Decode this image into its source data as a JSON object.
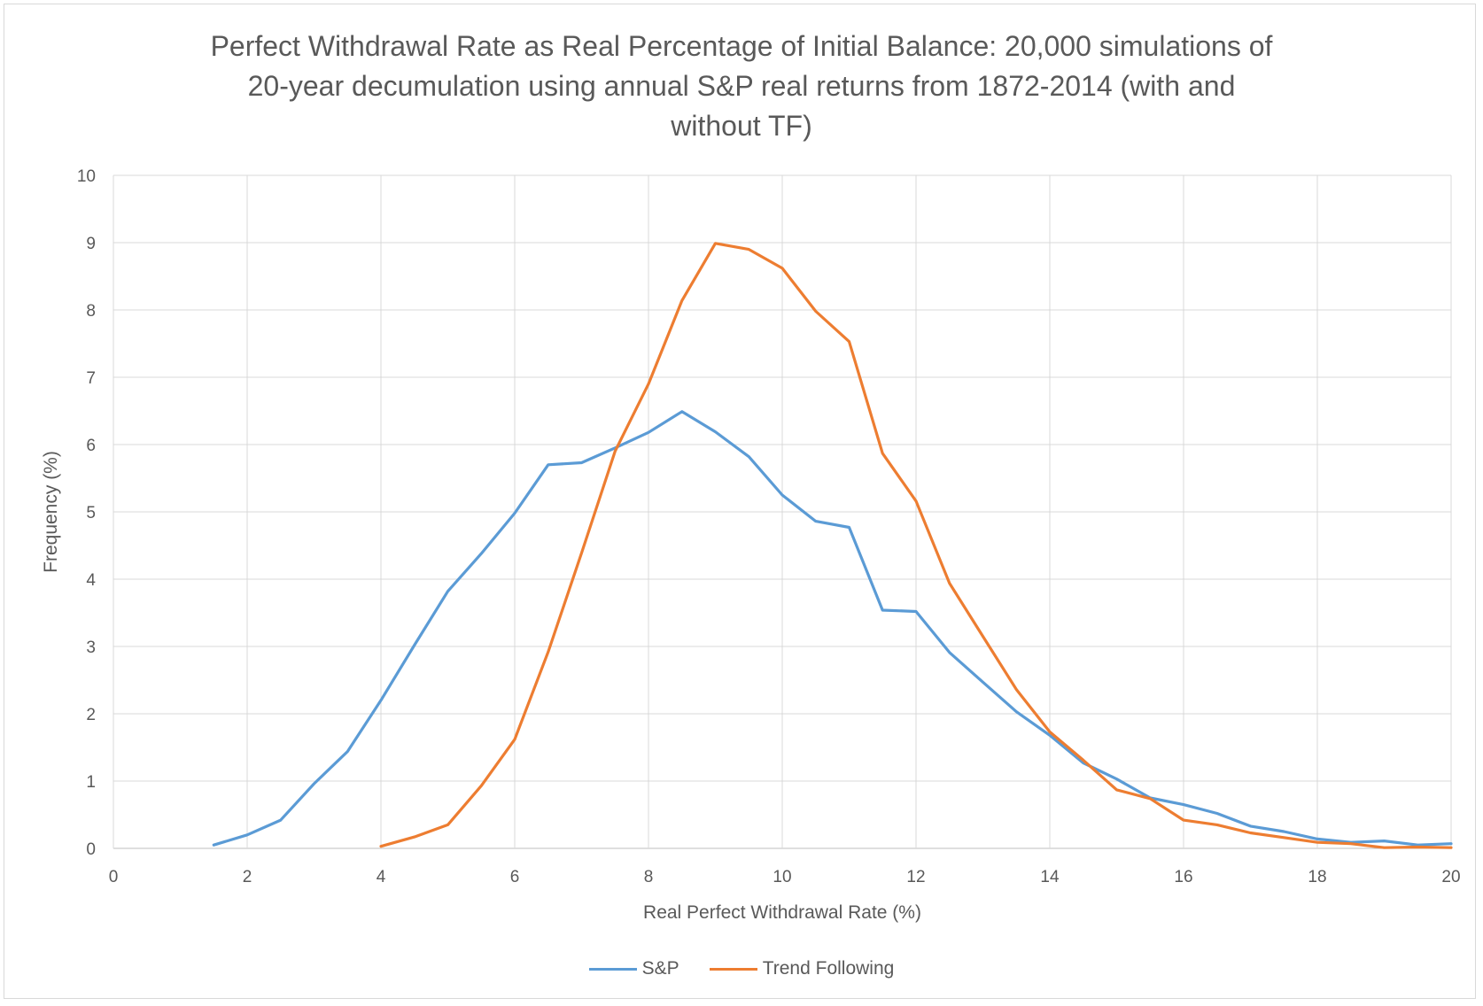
{
  "chart_data": {
    "type": "line",
    "title_lines": [
      "Perfect Withdrawal Rate as Real Percentage of Initial Balance: 20,000 simulations of",
      "20-year decumulation using annual S&P real returns from 1872-2014 (with and",
      "without TF)"
    ],
    "xlabel": "Real Perfect Withdrawal Rate (%)",
    "ylabel": "Frequency (%)",
    "xlim": [
      0,
      20
    ],
    "ylim": [
      0,
      10
    ],
    "xticks": [
      0,
      2,
      4,
      6,
      8,
      10,
      12,
      14,
      16,
      18,
      20
    ],
    "yticks": [
      0,
      1,
      2,
      3,
      4,
      5,
      6,
      7,
      8,
      9,
      10
    ],
    "grid": true,
    "legend_position": "bottom",
    "series": [
      {
        "name": "S&P",
        "color": "#5b9bd5",
        "x": [
          1.5,
          2,
          2.5,
          3,
          3.5,
          4,
          4.5,
          5,
          5.5,
          6,
          6.5,
          7,
          7.5,
          8,
          8.5,
          9,
          9.5,
          10,
          10.5,
          11,
          11.5,
          12,
          12.5,
          13,
          13.5,
          14,
          14.5,
          15,
          15.5,
          16,
          16.5,
          17,
          17.5,
          18,
          18.5,
          19,
          19.5,
          20
        ],
        "y": [
          0.05,
          0.2,
          0.42,
          0.96,
          1.44,
          2.2,
          3.02,
          3.82,
          4.38,
          4.98,
          5.7,
          5.73,
          5.95,
          6.18,
          6.49,
          6.19,
          5.82,
          5.25,
          4.86,
          4.77,
          3.54,
          3.52,
          2.91,
          2.47,
          2.03,
          1.68,
          1.27,
          1.03,
          0.75,
          0.65,
          0.52,
          0.33,
          0.25,
          0.14,
          0.09,
          0.11,
          0.05,
          0.07
        ]
      },
      {
        "name": "Trend Following",
        "color": "#ed7d31",
        "x": [
          4,
          4.5,
          5,
          5.5,
          6,
          6.5,
          7,
          7.5,
          8,
          8.5,
          9,
          9.5,
          10,
          10.5,
          11,
          11.5,
          12,
          12.5,
          13,
          13.5,
          14,
          14.5,
          15,
          15.5,
          16,
          16.5,
          17,
          17.5,
          18,
          18.5,
          19,
          19.5,
          20
        ],
        "y": [
          0.03,
          0.17,
          0.35,
          0.93,
          1.62,
          2.92,
          4.39,
          5.9,
          6.9,
          8.14,
          8.99,
          8.9,
          8.62,
          7.98,
          7.53,
          5.87,
          5.16,
          3.94,
          3.15,
          2.36,
          1.73,
          1.31,
          0.87,
          0.74,
          0.42,
          0.35,
          0.23,
          0.16,
          0.09,
          0.07,
          0.01,
          0.02,
          0.01
        ]
      }
    ]
  }
}
